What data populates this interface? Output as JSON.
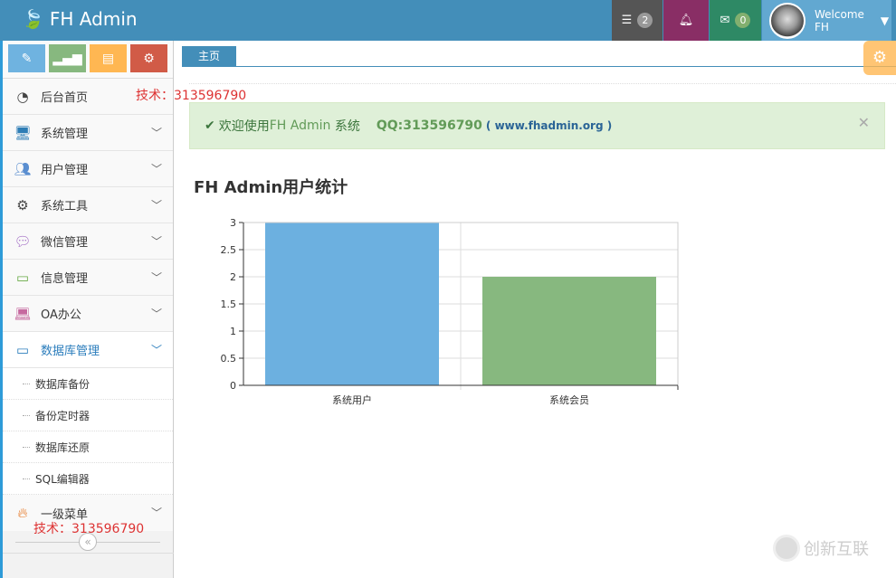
{
  "brand": {
    "title": "FH Admin",
    "icon": "leaf-icon"
  },
  "nav": {
    "tasks_count": "2",
    "messages_count": "0",
    "welcome": "Welcome",
    "user": "FH",
    "colors": {
      "tasks": "#555555",
      "notifications": "#892e65",
      "messages": "#2e8965"
    }
  },
  "sidebar": {
    "items": [
      {
        "label": "后台首页",
        "icon": "dashboard-icon"
      },
      {
        "label": "系统管理",
        "icon": "desktop-icon"
      },
      {
        "label": "用户管理",
        "icon": "users-icon"
      },
      {
        "label": "系统工具",
        "icon": "cog-icon"
      },
      {
        "label": "微信管理",
        "icon": "comments-icon"
      },
      {
        "label": "信息管理",
        "icon": "credit-card-icon"
      },
      {
        "label": "OA办公",
        "icon": "laptop-icon"
      },
      {
        "label": "数据库管理",
        "icon": "hdd-icon"
      }
    ],
    "subitems": [
      "数据库备份",
      "备份定时器",
      "数据库还原",
      "SQL编辑器"
    ],
    "last_item": "一级菜单",
    "watermark_top": "技术：313596790",
    "watermark_bottom": "技术：313596790"
  },
  "main": {
    "tab": "主页",
    "alert": {
      "prefix": "欢迎使用 ",
      "brand": "FH Admin",
      "suffix": " 系统",
      "qq": "QQ:313596790",
      "paren_open": "( ",
      "site": "www.fhadmin.org",
      "paren_close": " )"
    },
    "heading": "FH Admin用户统计"
  },
  "watermark_logo": "创新互联",
  "chart_data": {
    "type": "bar",
    "categories": [
      "系统用户",
      "系统会员"
    ],
    "values": [
      3,
      2
    ],
    "colors": [
      "#6cb0e0",
      "#87b87f"
    ],
    "ylim": [
      0,
      3
    ],
    "yticks": [
      "0",
      "0.5",
      "1",
      "1.5",
      "2",
      "2.5",
      "3"
    ],
    "grid": true
  }
}
